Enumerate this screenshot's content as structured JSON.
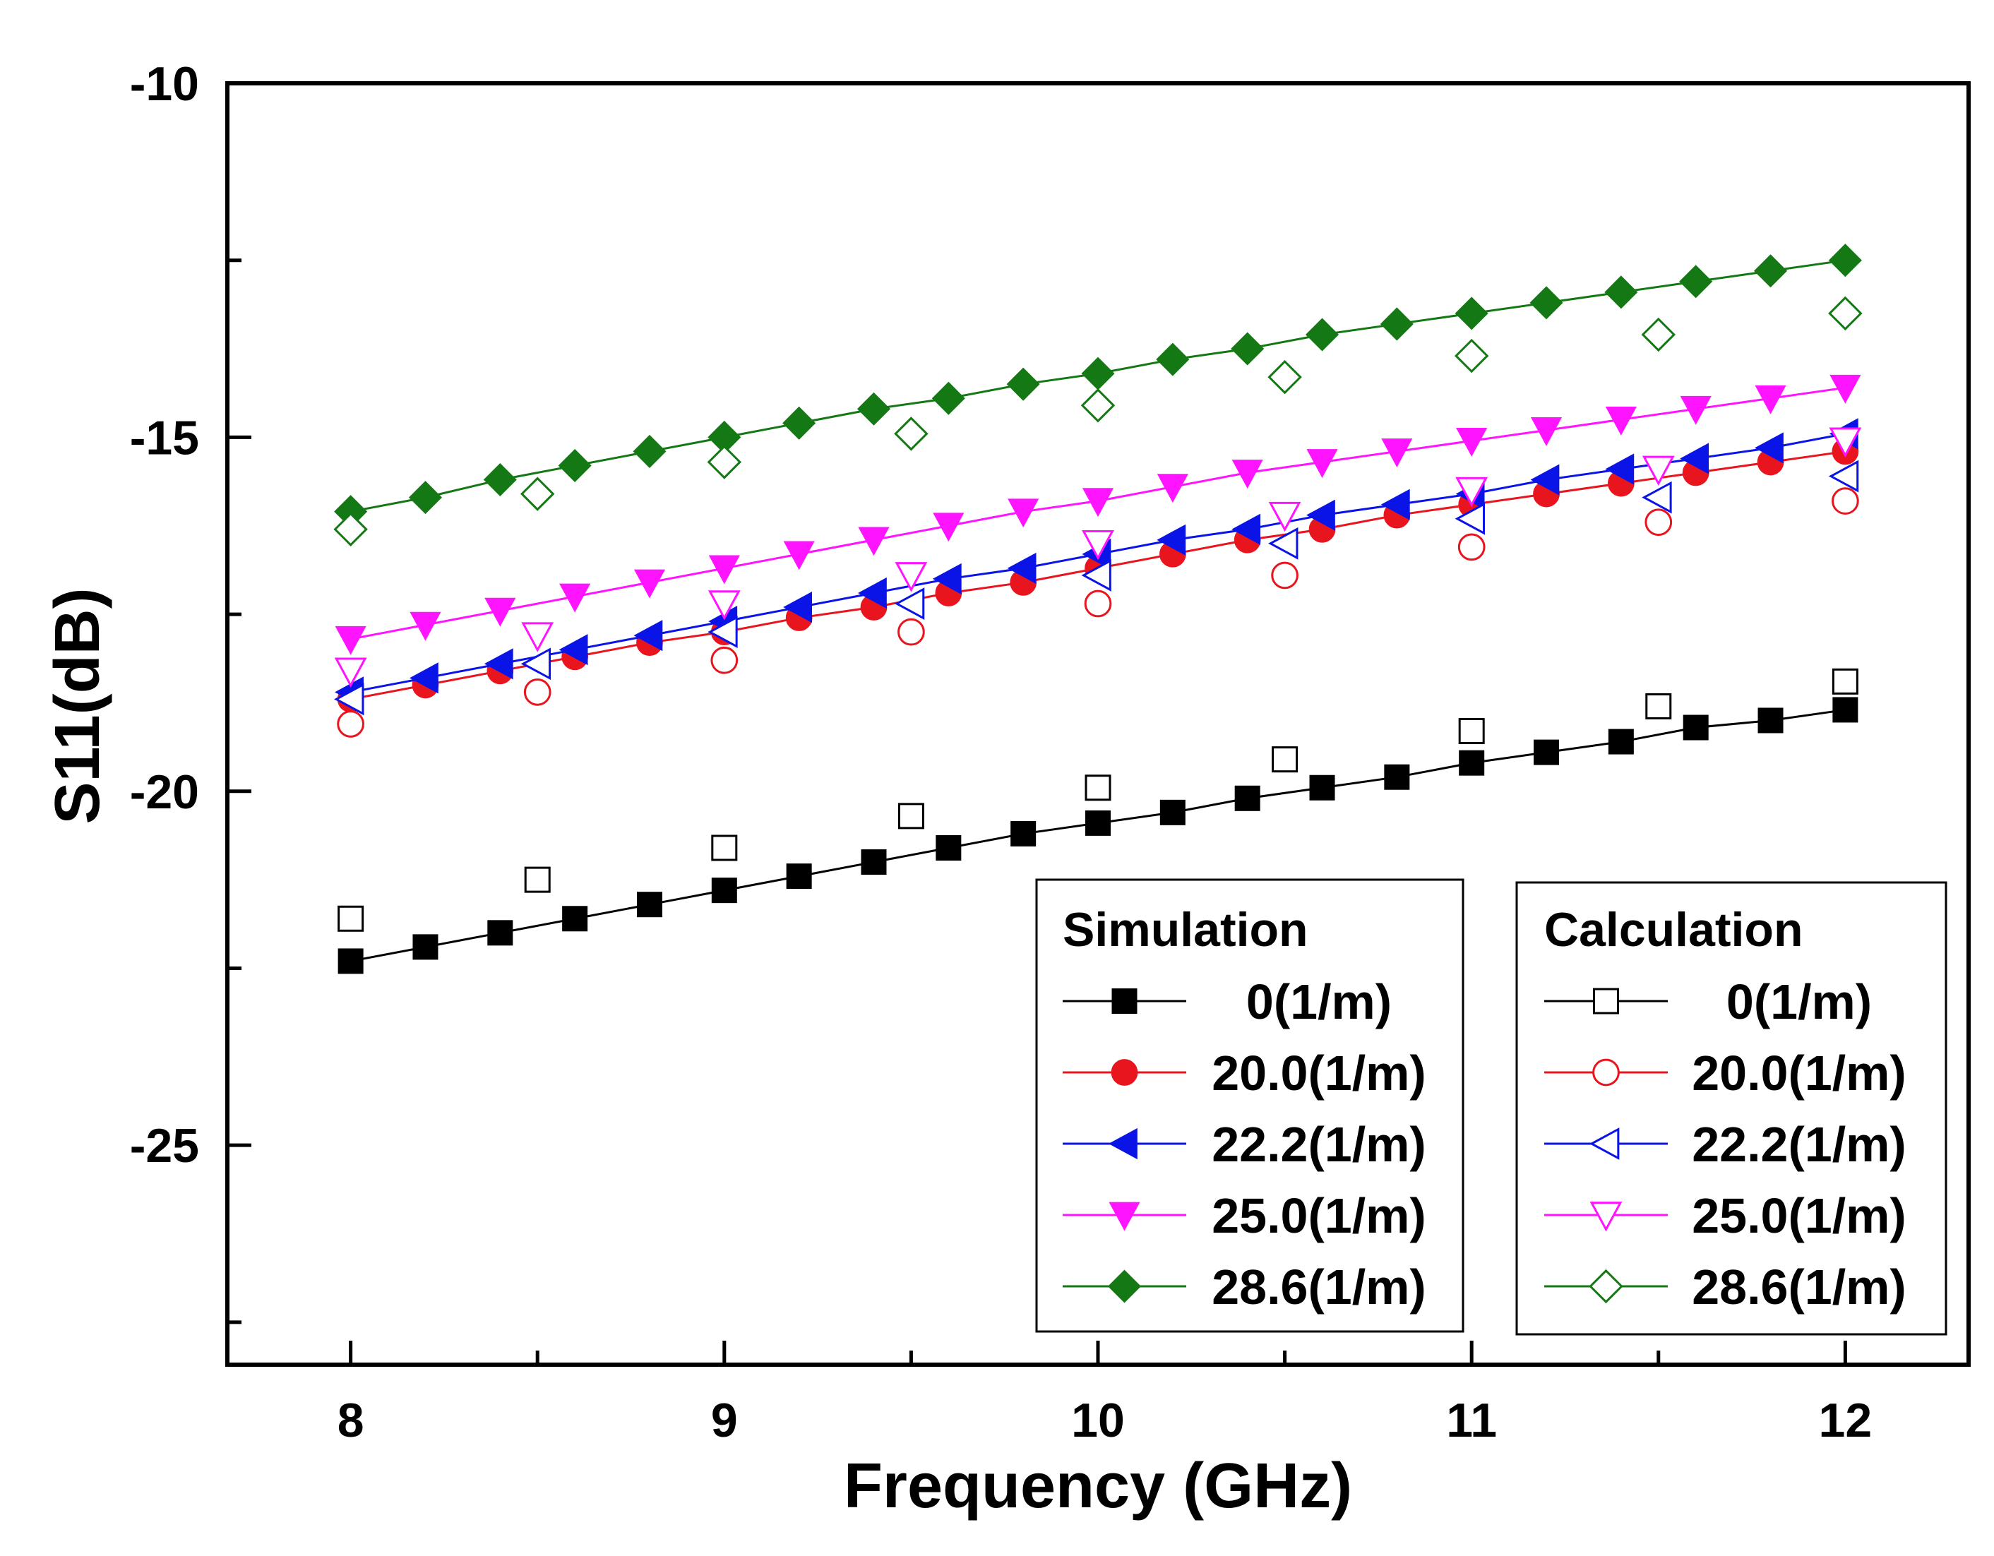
{
  "chart_data": {
    "type": "line",
    "title": "",
    "xlabel": "Frequency (GHz)",
    "ylabel": "S11(dB)",
    "xlim": [
      7.67,
      12.33
    ],
    "ylim": [
      -28.1,
      -10
    ],
    "xticks": [
      8,
      9,
      10,
      11,
      12
    ],
    "xtick_labels": [
      "8",
      "9",
      "10",
      "11",
      "12"
    ],
    "yticks": [
      -10,
      -15,
      -20,
      -25
    ],
    "ytick_labels": [
      "-10",
      "-15",
      "-20",
      "-25"
    ],
    "grid": false,
    "legend_placement": "bottom-right",
    "legend_groups": [
      {
        "title": "Simulation",
        "style": "filled"
      },
      {
        "title": "Calculation",
        "style": "open"
      }
    ],
    "sim_x": [
      8.0,
      8.2,
      8.4,
      8.6,
      8.8,
      9.0,
      9.2,
      9.4,
      9.6,
      9.8,
      10.0,
      10.2,
      10.4,
      10.6,
      10.8,
      11.0,
      11.2,
      11.4,
      11.6,
      11.8,
      12.0
    ],
    "calc_x": [
      8.0,
      8.5,
      9.0,
      9.5,
      10.0,
      10.5,
      11.0,
      11.5,
      12.0
    ],
    "series": [
      {
        "name": "0(1/m)",
        "marker": "square",
        "color": "#000000",
        "simulation": [
          -22.4,
          -22.2,
          -22.0,
          -21.8,
          -21.6,
          -21.4,
          -21.2,
          -21.0,
          -20.8,
          -20.6,
          -20.45,
          -20.3,
          -20.1,
          -19.95,
          -19.8,
          -19.6,
          -19.45,
          -19.3,
          -19.1,
          -19.0,
          -18.85
        ],
        "calculation": [
          -21.8,
          -21.25,
          -20.8,
          -20.35,
          -19.95,
          -19.55,
          -19.15,
          -18.8,
          -18.45
        ]
      },
      {
        "name": "20.0(1/m)",
        "marker": "circle",
        "color": "#e8141e",
        "simulation": [
          -18.7,
          -18.5,
          -18.3,
          -18.1,
          -17.9,
          -17.75,
          -17.55,
          -17.4,
          -17.2,
          -17.05,
          -16.85,
          -16.65,
          -16.45,
          -16.3,
          -16.1,
          -15.95,
          -15.8,
          -15.65,
          -15.5,
          -15.35,
          -15.2
        ],
        "calculation": [
          -19.05,
          -18.6,
          -18.15,
          -17.75,
          -17.35,
          -16.95,
          -16.55,
          -16.2,
          -15.9
        ]
      },
      {
        "name": "22.2(1/m)",
        "marker": "triangle-left",
        "color": "#0a14e6",
        "simulation": [
          -18.6,
          -18.4,
          -18.2,
          -18.0,
          -17.8,
          -17.6,
          -17.4,
          -17.2,
          -17.0,
          -16.85,
          -16.65,
          -16.45,
          -16.3,
          -16.1,
          -15.95,
          -15.8,
          -15.6,
          -15.45,
          -15.3,
          -15.15,
          -14.95
        ],
        "calculation": [
          -18.7,
          -18.2,
          -17.75,
          -17.35,
          -16.95,
          -16.5,
          -16.15,
          -15.85,
          -15.55
        ]
      },
      {
        "name": "25.0(1/m)",
        "marker": "triangle-down",
        "color": "#ff14ff",
        "simulation": [
          -17.85,
          -17.65,
          -17.45,
          -17.25,
          -17.05,
          -16.85,
          -16.65,
          -16.45,
          -16.25,
          -16.05,
          -15.9,
          -15.7,
          -15.5,
          -15.35,
          -15.2,
          -15.05,
          -14.9,
          -14.75,
          -14.6,
          -14.45,
          -14.3
        ],
        "calculation": [
          -18.3,
          -17.8,
          -17.35,
          -16.95,
          -16.5,
          -16.1,
          -15.75,
          -15.45,
          -15.05
        ]
      },
      {
        "name": "28.6(1/m)",
        "marker": "diamond",
        "color": "#147814",
        "simulation": [
          -16.05,
          -15.85,
          -15.6,
          -15.4,
          -15.2,
          -15.0,
          -14.8,
          -14.6,
          -14.45,
          -14.25,
          -14.1,
          -13.9,
          -13.75,
          -13.55,
          -13.4,
          -13.25,
          -13.1,
          -12.95,
          -12.8,
          -12.65,
          -12.5
        ],
        "calculation": [
          -16.3,
          -15.8,
          -15.35,
          -14.95,
          -14.55,
          -14.15,
          -13.85,
          -13.55,
          -13.25
        ]
      }
    ]
  }
}
